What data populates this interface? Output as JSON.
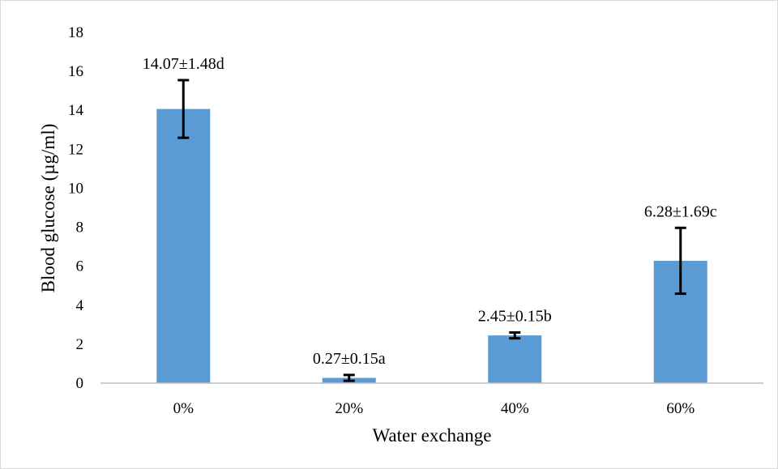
{
  "chart_data": {
    "type": "bar",
    "categories": [
      "0%",
      "20%",
      "40%",
      "60%"
    ],
    "values": [
      14.07,
      0.27,
      2.45,
      6.28
    ],
    "errors": [
      1.48,
      0.15,
      0.15,
      1.69
    ],
    "data_labels": [
      "14.07±1.48d",
      "0.27±0.15a",
      "2.45±0.15b",
      "6.28±1.69c"
    ],
    "xlabel": "Water exchange",
    "ylabel": "Blood glucose (µg/ml)",
    "ylim": [
      0,
      18
    ],
    "yticks": [
      "0",
      "2",
      "4",
      "6",
      "8",
      "10",
      "12",
      "14",
      "16",
      "18"
    ],
    "grid": false,
    "legend": "none",
    "bar_color": "#5b9bd5",
    "error_bar_color": "#000000"
  }
}
